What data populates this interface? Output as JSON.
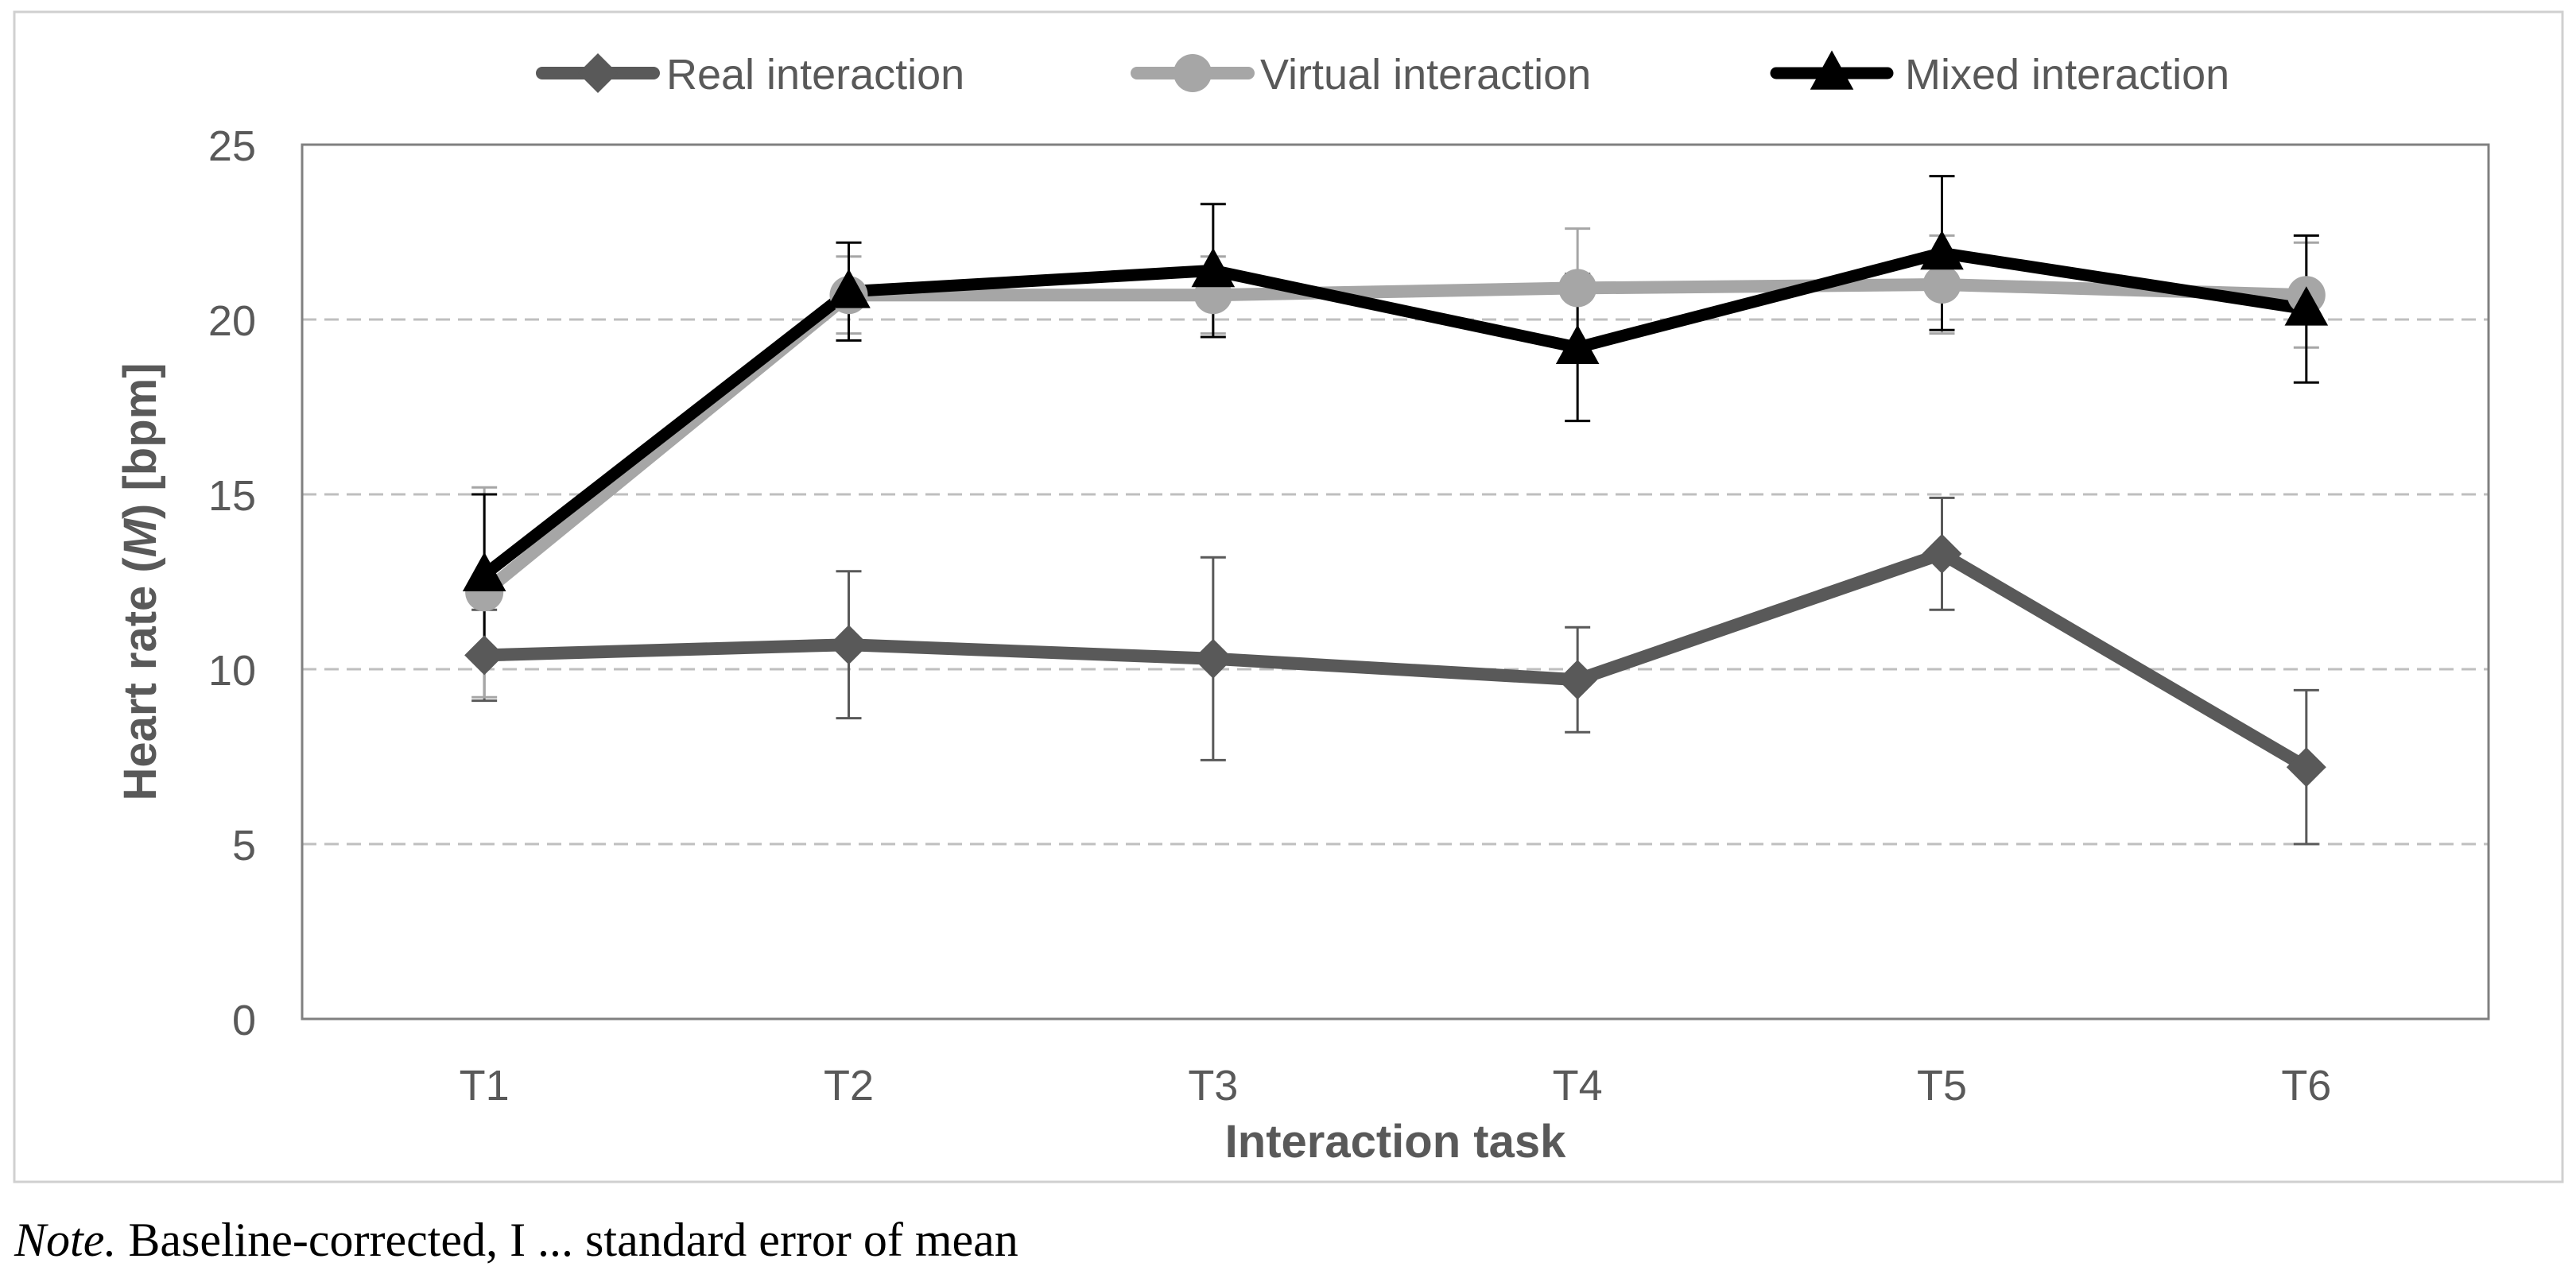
{
  "chart_data": {
    "type": "line",
    "title": "",
    "xlabel": "Interaction task",
    "ylabel": {
      "prefix": "Heart rate (",
      "italic": "M",
      "suffix": ") [bpm]"
    },
    "categories": [
      "T1",
      "T2",
      "T3",
      "T4",
      "T5",
      "T6"
    ],
    "ylim": [
      0,
      25
    ],
    "yticks": [
      0,
      5,
      10,
      15,
      20,
      25
    ],
    "grid": "horizontal-dashed",
    "legend_position": "top",
    "series": [
      {
        "name": "Real interaction",
        "marker": "diamond",
        "color": "#595959",
        "values": [
          10.4,
          10.7,
          10.3,
          9.7,
          13.3,
          7.2
        ],
        "errors": [
          1.3,
          2.1,
          2.9,
          1.5,
          1.6,
          2.2
        ]
      },
      {
        "name": "Virtual interaction",
        "marker": "circle",
        "color": "#a6a6a6",
        "values": [
          12.2,
          20.7,
          20.7,
          20.9,
          21.0,
          20.7
        ],
        "errors": [
          3.0,
          1.1,
          1.1,
          1.7,
          1.4,
          1.5
        ]
      },
      {
        "name": "Mixed interaction",
        "marker": "triangle",
        "color": "#000000",
        "values": [
          12.7,
          20.8,
          21.4,
          19.2,
          21.9,
          20.3
        ],
        "errors": [
          2.3,
          1.4,
          1.9,
          2.1,
          2.2,
          2.1
        ]
      }
    ]
  },
  "note": {
    "label": "Note.",
    "text": " Baseline-corrected, I ... standard error of mean"
  }
}
